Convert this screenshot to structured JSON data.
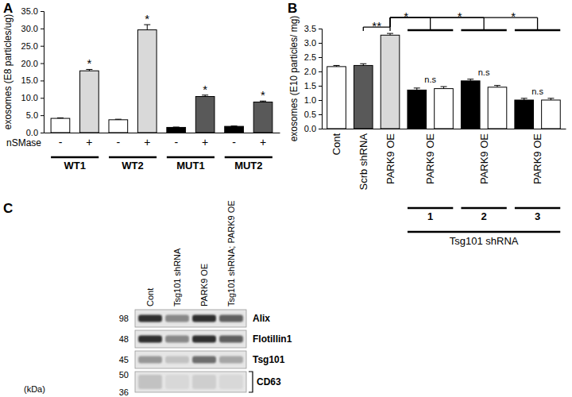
{
  "chart_data": [
    {
      "type": "bar",
      "title": "A",
      "ylabel": "exosomes (E8 particles/ug)",
      "xlabel": "nSMase",
      "categories": [
        "-",
        "+",
        "-",
        "+",
        "-",
        "+",
        "-",
        "+"
      ],
      "values": [
        4.1,
        17.8,
        3.7,
        29.6,
        1.5,
        10.4,
        1.8,
        8.8
      ],
      "errors": [
        0.15,
        0.4,
        0.15,
        1.5,
        0.1,
        0.4,
        0.1,
        0.3
      ],
      "colors": [
        "#ffffff",
        "#d9d9d9",
        "#ffffff",
        "#d9d9d9",
        "#000000",
        "#595959",
        "#000000",
        "#595959"
      ],
      "groups": [
        {
          "label": "WT1",
          "members": [
            0,
            1
          ]
        },
        {
          "label": "WT2",
          "members": [
            2,
            3
          ]
        },
        {
          "label": "MUT1",
          "members": [
            4,
            5
          ]
        },
        {
          "label": "MUT2",
          "members": [
            6,
            7
          ]
        }
      ],
      "annotations": [
        {
          "text": "*",
          "at": 1
        },
        {
          "text": "*",
          "at": 3
        },
        {
          "text": "*",
          "at": 5
        },
        {
          "text": "*",
          "at": 7
        }
      ],
      "ylim": [
        0,
        35
      ],
      "yticks": [
        {
          "value": 0,
          "label": "0.0"
        },
        {
          "value": 5,
          "label": "5.0"
        },
        {
          "value": 10,
          "label": "10.0"
        },
        {
          "value": 15,
          "label": "15.0"
        },
        {
          "value": 20,
          "label": "20.0"
        },
        {
          "value": 25,
          "label": "25.0"
        },
        {
          "value": 30,
          "label": "30.0"
        },
        {
          "value": 35,
          "label": "35.0"
        }
      ],
      "grid": false
    },
    {
      "type": "bar",
      "title": "B",
      "ylabel": "exosomes (E10 particles/ mg)",
      "categories": [
        "Cont",
        "Scrb shRNA",
        "PARK9 OE",
        "PARK9 OE",
        null,
        "PARK9 OE",
        null,
        "PARK9 OE",
        null
      ],
      "values": [
        2.17,
        2.21,
        3.27,
        1.35,
        1.4,
        1.67,
        1.45,
        1.0,
        1.0
      ],
      "errors": [
        0.04,
        0.06,
        0.06,
        0.07,
        0.07,
        0.06,
        0.06,
        0.06,
        0.06
      ],
      "colors": [
        "#ffffff",
        "#595959",
        "#d9d9d9",
        "#000000",
        "#ffffff",
        "#000000",
        "#ffffff",
        "#000000",
        "#ffffff"
      ],
      "groups": [
        {
          "label": "1",
          "members": [
            3,
            4
          ]
        },
        {
          "label": "2",
          "members": [
            5,
            6
          ]
        },
        {
          "label": "3",
          "members": [
            7,
            8
          ]
        }
      ],
      "supergroup": {
        "label": "Tsg101 shRNA",
        "members": [
          3,
          4,
          5,
          6,
          7,
          8
        ]
      },
      "brackets": [
        {
          "text": "**",
          "members": [
            1,
            2
          ]
        },
        {
          "text": "*",
          "members": [
            2,
            3,
            4
          ]
        },
        {
          "text": "*",
          "members": [
            2,
            5,
            6
          ]
        },
        {
          "text": "*",
          "members": [
            2,
            7,
            8
          ]
        }
      ],
      "annotations": [
        {
          "text": "n.s",
          "members": [
            3,
            4
          ]
        },
        {
          "text": "n.s",
          "members": [
            5,
            6
          ]
        },
        {
          "text": "n.s",
          "members": [
            7,
            8
          ]
        }
      ],
      "ylim": [
        0,
        3.5
      ],
      "yticks": [
        {
          "value": 0,
          "label": "0.0"
        },
        {
          "value": 0.5,
          "label": "0.5"
        },
        {
          "value": 1,
          "label": "1.0"
        },
        {
          "value": 1.5,
          "label": "1.5"
        },
        {
          "value": 2,
          "label": "2.0"
        },
        {
          "value": 2.5,
          "label": "2.5"
        },
        {
          "value": 3,
          "label": "3.0"
        },
        {
          "value": 3.5,
          "label": "3.5"
        }
      ],
      "grid": false
    }
  ],
  "blot": {
    "title": "C",
    "unit": "(kDa)",
    "lanes": [
      "Cont",
      "Tsg101 shRNA",
      "PARK9 OE",
      "Tsg101 shRNA; PARK9 OE"
    ],
    "rows": [
      {
        "label": "Alix",
        "markers": [
          98
        ],
        "intensity": [
          0.85,
          0.55,
          0.85,
          0.7
        ]
      },
      {
        "label": "Flotillin1",
        "markers": [
          48
        ],
        "intensity": [
          0.85,
          0.55,
          0.85,
          0.7
        ]
      },
      {
        "label": "Tsg101",
        "markers": [
          45
        ],
        "intensity": [
          0.5,
          0.35,
          0.65,
          0.45
        ]
      },
      {
        "label": "CD63",
        "markers": [
          50,
          36
        ],
        "intensity": [
          0.35,
          0.25,
          0.3,
          0.25
        ]
      }
    ]
  }
}
